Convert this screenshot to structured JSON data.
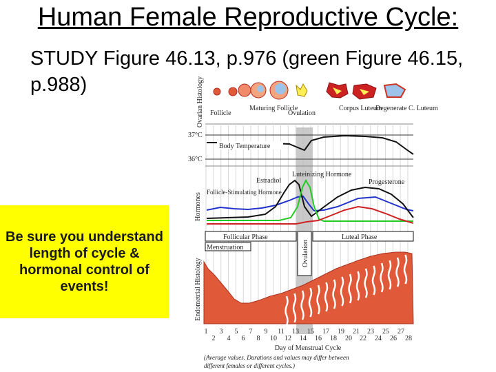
{
  "slide": {
    "title": "Human Female Reproductive Cycle:",
    "subtitle": "STUDY Figure 46.13, p.976 (green Figure 46.15, p.988)",
    "callout": "Be sure you understand length of cycle & hormonal control of events!"
  },
  "figure": {
    "ovarian_label": "Ovarian Histology",
    "hormones_label": "Hormones",
    "endometrial_label": "Endometrial Histology",
    "ovarian_stages": [
      "Follicle",
      "Maturing Follicle",
      "Ovulation",
      "Corpus Luteum",
      "Degenerate C. Luteum"
    ],
    "temp_high": "37°C",
    "temp_low": "36°C",
    "body_temp_label": "Body Temperature",
    "hormone_labels": {
      "estradiol": "Estradiol",
      "lh": "Luteinizing Hormone",
      "fsh": "Follicle-Stimulating Hormone",
      "progesterone": "Progesterone"
    },
    "phases": {
      "follicular": "Follicular Phase",
      "luteal": "Luteal Phase",
      "menstruation": "Menstruation",
      "ovulation": "Ovulation"
    },
    "days_odd": [
      "1",
      "3",
      "5",
      "7",
      "9",
      "11",
      "13",
      "15",
      "17",
      "19",
      "21",
      "23",
      "25",
      "27"
    ],
    "days_even": [
      "2",
      "4",
      "6",
      "8",
      "10",
      "12",
      "14",
      "16",
      "18",
      "20",
      "22",
      "24",
      "26",
      "28"
    ],
    "day_axis_label": "Day of Menstrual Cycle",
    "note_line1": "(Average values. Durations and values may differ between",
    "note_line2": "different females or different cycles.)",
    "colors": {
      "estradiol": "#111111",
      "lh": "#22cc22",
      "fsh": "#2233cc",
      "progesterone": "#cc2222",
      "endometrium": "#e05a3a",
      "ovulation_band": "#bfbfbf",
      "callout": "#ffff00"
    }
  }
}
